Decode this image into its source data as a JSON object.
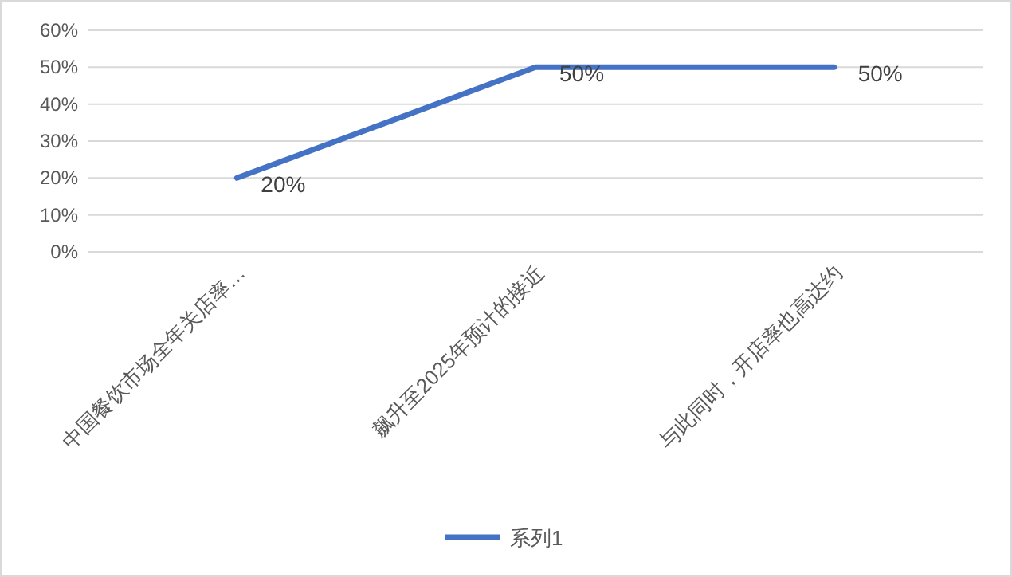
{
  "chart_data": {
    "type": "line",
    "categories": [
      "中国餐饮市场全年关店率…",
      "飙升至2025年预计的接近",
      "与此同时，开店率也高达约"
    ],
    "series": [
      {
        "name": "系列1",
        "color": "#4472c4",
        "values": [
          20,
          50,
          50
        ],
        "value_labels": [
          "20%",
          "50%",
          "50%"
        ]
      }
    ],
    "ylim": [
      0,
      60
    ],
    "yticks": [
      {
        "value": 0,
        "label": "0%"
      },
      {
        "value": 10,
        "label": "10%"
      },
      {
        "value": 20,
        "label": "20%"
      },
      {
        "value": 30,
        "label": "30%"
      },
      {
        "value": 40,
        "label": "40%"
      },
      {
        "value": 50,
        "label": "50%"
      },
      {
        "value": 60,
        "label": "60%"
      }
    ],
    "grid": "y",
    "legend": "bottom"
  }
}
